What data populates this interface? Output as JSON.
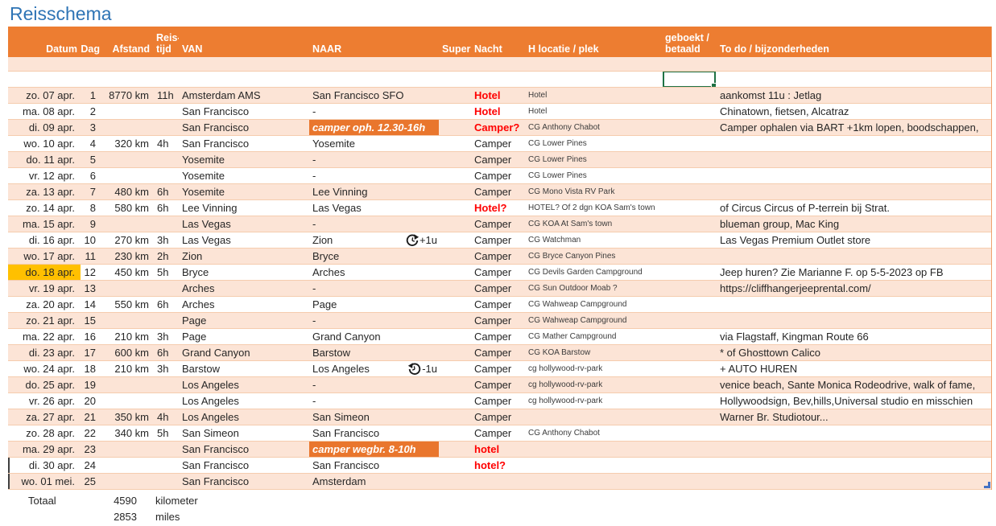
{
  "title": "Reisschema",
  "colors": {
    "header_bg": "#ED7D31",
    "band_bg": "#FCE4D6",
    "highlight_cell": "#E9762D",
    "date_highlight": "#FFC000",
    "alert_text": "#FF0000",
    "title_text": "#2E74B5",
    "selection_border": "#1F7245",
    "table_handle_blue": "#4472C4"
  },
  "header": {
    "datum": "Datum",
    "dag": "Dag",
    "afstand": "Afstand",
    "reistijd_line1": "Reis-",
    "reistijd_line2": "tijd",
    "van": "VAN",
    "naar": "NAAR",
    "super": "Super",
    "nacht": "Nacht",
    "h_locatie": "H locatie / plek",
    "geboekt_line1": "geboekt /",
    "geboekt_line2": "betaald",
    "todo": "To do / bijzonderheden"
  },
  "rows": [
    {
      "datum": "zo. 07 apr.",
      "date_hl": false,
      "dag": "1",
      "afstand": "8770 km",
      "tijd": "11h",
      "van": "Amsterdam AMS",
      "naar": "San Francisco SFO",
      "naar_hl": false,
      "tz": "",
      "tz_dir": "",
      "nacht": "Hotel",
      "nacht_red": true,
      "hloc": "Hotel",
      "todo": "aankomst 11u : Jetlag"
    },
    {
      "datum": "ma. 08 apr.",
      "date_hl": false,
      "dag": "2",
      "afstand": "",
      "tijd": "",
      "van": "San Francisco",
      "naar": "-",
      "naar_hl": false,
      "tz": "",
      "tz_dir": "",
      "nacht": "Hotel",
      "nacht_red": true,
      "hloc": "Hotel",
      "todo": "Chinatown, fietsen, Alcatraz"
    },
    {
      "datum": "di. 09 apr.",
      "date_hl": false,
      "dag": "3",
      "afstand": "",
      "tijd": "",
      "van": "San Francisco",
      "naar": "camper oph. 12.30-16h",
      "naar_hl": true,
      "tz": "",
      "tz_dir": "",
      "nacht": "Camper?",
      "nacht_red": true,
      "hloc": "CG Anthony Chabot",
      "todo": "Camper ophalen via BART +1km lopen, boodschappen,"
    },
    {
      "datum": "wo. 10 apr.",
      "date_hl": false,
      "dag": "4",
      "afstand": "320 km",
      "tijd": "4h",
      "van": "San Francisco",
      "naar": "Yosemite",
      "naar_hl": false,
      "tz": "",
      "tz_dir": "",
      "nacht": "Camper",
      "nacht_red": false,
      "hloc": "CG Lower Pines",
      "todo": ""
    },
    {
      "datum": "do. 11 apr.",
      "date_hl": false,
      "dag": "5",
      "afstand": "",
      "tijd": "",
      "van": "Yosemite",
      "naar": "-",
      "naar_hl": false,
      "tz": "",
      "tz_dir": "",
      "nacht": "Camper",
      "nacht_red": false,
      "hloc": "CG Lower Pines",
      "todo": ""
    },
    {
      "datum": "vr. 12 apr.",
      "date_hl": false,
      "dag": "6",
      "afstand": "",
      "tijd": "",
      "van": "Yosemite",
      "naar": "-",
      "naar_hl": false,
      "tz": "",
      "tz_dir": "",
      "nacht": "Camper",
      "nacht_red": false,
      "hloc": "CG Lower Pines",
      "todo": ""
    },
    {
      "datum": "za. 13 apr.",
      "date_hl": false,
      "dag": "7",
      "afstand": "480 km",
      "tijd": "6h",
      "van": "Yosemite",
      "naar": "Lee Vinning",
      "naar_hl": false,
      "tz": "",
      "tz_dir": "",
      "nacht": "Camper",
      "nacht_red": false,
      "hloc": "CG Mono Vista RV Park",
      "todo": ""
    },
    {
      "datum": "zo. 14 apr.",
      "date_hl": false,
      "dag": "8",
      "afstand": "580 km",
      "tijd": "6h",
      "van": "Lee Vinning",
      "naar": "Las Vegas",
      "naar_hl": false,
      "tz": "",
      "tz_dir": "",
      "nacht": "Hotel?",
      "nacht_red": true,
      "hloc": "HOTEL? Of 2 dgn KOA Sam's town",
      "todo": "of Circus Circus of P-terrein bij Strat."
    },
    {
      "datum": "ma. 15 apr.",
      "date_hl": false,
      "dag": "9",
      "afstand": "",
      "tijd": "",
      "van": "Las Vegas",
      "naar": "-",
      "naar_hl": false,
      "tz": "",
      "tz_dir": "",
      "nacht": "Camper",
      "nacht_red": false,
      "hloc": "CG KOA At Sam's town",
      "todo": "blueman group, Mac King"
    },
    {
      "datum": "di. 16 apr.",
      "date_hl": false,
      "dag": "10",
      "afstand": "270 km",
      "tijd": "3h",
      "van": "Las Vegas",
      "naar": "Zion",
      "naar_hl": false,
      "tz": "+1u",
      "tz_dir": "cw",
      "nacht": "Camper",
      "nacht_red": false,
      "hloc": "CG Watchman",
      "todo": "Las Vegas Premium Outlet store"
    },
    {
      "datum": "wo. 17 apr.",
      "date_hl": false,
      "dag": "11",
      "afstand": "230 km",
      "tijd": "2h",
      "van": "Zion",
      "naar": "Bryce",
      "naar_hl": false,
      "tz": "",
      "tz_dir": "",
      "nacht": "Camper",
      "nacht_red": false,
      "hloc": "CG Bryce Canyon Pines",
      "todo": ""
    },
    {
      "datum": "do. 18 apr.",
      "date_hl": true,
      "dag": "12",
      "afstand": "450 km",
      "tijd": "5h",
      "van": "Bryce",
      "naar": "Arches",
      "naar_hl": false,
      "tz": "",
      "tz_dir": "",
      "nacht": "Camper",
      "nacht_red": false,
      "hloc": "CG Devils Garden Campground",
      "todo": "Jeep huren? Zie Marianne F. op 5-5-2023 op FB"
    },
    {
      "datum": "vr. 19 apr.",
      "date_hl": false,
      "dag": "13",
      "afstand": "",
      "tijd": "",
      "van": "Arches",
      "naar": "-",
      "naar_hl": false,
      "tz": "",
      "tz_dir": "",
      "nacht": "Camper",
      "nacht_red": false,
      "hloc": "CG Sun Outdoor Moab ?",
      "todo": "https://cliffhangerjeeprental.com/"
    },
    {
      "datum": "za. 20 apr.",
      "date_hl": false,
      "dag": "14",
      "afstand": "550 km",
      "tijd": "6h",
      "van": "Arches",
      "naar": "Page",
      "naar_hl": false,
      "tz": "",
      "tz_dir": "",
      "nacht": "Camper",
      "nacht_red": false,
      "hloc": "CG Wahweap Campground",
      "todo": ""
    },
    {
      "datum": "zo. 21 apr.",
      "date_hl": false,
      "dag": "15",
      "afstand": "",
      "tijd": "",
      "van": "Page",
      "naar": "-",
      "naar_hl": false,
      "tz": "",
      "tz_dir": "",
      "nacht": "Camper",
      "nacht_red": false,
      "hloc": "CG Wahweap Campground",
      "todo": ""
    },
    {
      "datum": "ma. 22 apr.",
      "date_hl": false,
      "dag": "16",
      "afstand": "210 km",
      "tijd": "3h",
      "van": "Page",
      "naar": "Grand Canyon",
      "naar_hl": false,
      "tz": "",
      "tz_dir": "",
      "nacht": "Camper",
      "nacht_red": false,
      "hloc": "CG Mather Campground",
      "todo": "via Flagstaff, Kingman Route 66"
    },
    {
      "datum": "di. 23 apr.",
      "date_hl": false,
      "dag": "17",
      "afstand": "600 km",
      "tijd": "6h",
      "van": "Grand Canyon",
      "naar": "Barstow",
      "naar_hl": false,
      "tz": "",
      "tz_dir": "",
      "nacht": "Camper",
      "nacht_red": false,
      "hloc": "CG KOA Barstow",
      "todo": "* of Ghosttown Calico"
    },
    {
      "datum": "wo. 24 apr.",
      "date_hl": false,
      "dag": "18",
      "afstand": "210 km",
      "tijd": "3h",
      "van": "Barstow",
      "naar": "Los Angeles",
      "naar_hl": false,
      "tz": "-1u",
      "tz_dir": "ccw",
      "nacht": "Camper",
      "nacht_red": false,
      "hloc": "cg hollywood-rv-park",
      "todo": "+ AUTO HUREN"
    },
    {
      "datum": "do. 25 apr.",
      "date_hl": false,
      "dag": "19",
      "afstand": "",
      "tijd": "",
      "van": "Los Angeles",
      "naar": "-",
      "naar_hl": false,
      "tz": "",
      "tz_dir": "",
      "nacht": "Camper",
      "nacht_red": false,
      "hloc": "cg hollywood-rv-park",
      "todo": "venice beach, Sante Monica Rodeodrive, walk of fame,"
    },
    {
      "datum": "vr. 26 apr.",
      "date_hl": false,
      "dag": "20",
      "afstand": "",
      "tijd": "",
      "van": "Los Angeles",
      "naar": "-",
      "naar_hl": false,
      "tz": "",
      "tz_dir": "",
      "nacht": "Camper",
      "nacht_red": false,
      "hloc": "cg hollywood-rv-park",
      "todo": "Hollywoodsign, Bev,hills,Universal studio en misschien"
    },
    {
      "datum": "za. 27 apr.",
      "date_hl": false,
      "dag": "21",
      "afstand": "350 km",
      "tijd": "4h",
      "van": "Los Angeles",
      "naar": "San Simeon",
      "naar_hl": false,
      "tz": "",
      "tz_dir": "",
      "nacht": "Camper",
      "nacht_red": false,
      "hloc": "",
      "todo": "Warner Br. Studiotour..."
    },
    {
      "datum": "zo. 28 apr.",
      "date_hl": false,
      "dag": "22",
      "afstand": "340 km",
      "tijd": "5h",
      "van": "San Simeon",
      "naar": "San Francisco",
      "naar_hl": false,
      "tz": "",
      "tz_dir": "",
      "nacht": "Camper",
      "nacht_red": false,
      "hloc": "CG Anthony Chabot",
      "todo": ""
    },
    {
      "datum": "ma. 29 apr.",
      "date_hl": false,
      "dag": "23",
      "afstand": "",
      "tijd": "",
      "van": "San Francisco",
      "naar": "camper wegbr. 8-10h",
      "naar_hl": true,
      "tz": "",
      "tz_dir": "",
      "nacht": "hotel",
      "nacht_red": true,
      "hloc": "",
      "todo": ""
    },
    {
      "datum": "di. 30 apr.",
      "date_hl": false,
      "dag": "24",
      "afstand": "",
      "tijd": "",
      "van": "San Francisco",
      "naar": "San Francisco",
      "naar_hl": false,
      "tz": "",
      "tz_dir": "",
      "nacht": "hotel?",
      "nacht_red": true,
      "hloc": "",
      "todo": ""
    },
    {
      "datum": "wo. 01 mei.",
      "date_hl": false,
      "dag": "25",
      "afstand": "",
      "tijd": "",
      "van": "San Francisco",
      "naar": "Amsterdam",
      "naar_hl": false,
      "tz": "",
      "tz_dir": "",
      "nacht": "",
      "nacht_red": false,
      "hloc": "",
      "todo": ""
    }
  ],
  "totals": {
    "label": "Totaal",
    "km_value": "4590",
    "km_unit": "kilometer",
    "miles_value": "2853",
    "miles_unit": "miles"
  }
}
